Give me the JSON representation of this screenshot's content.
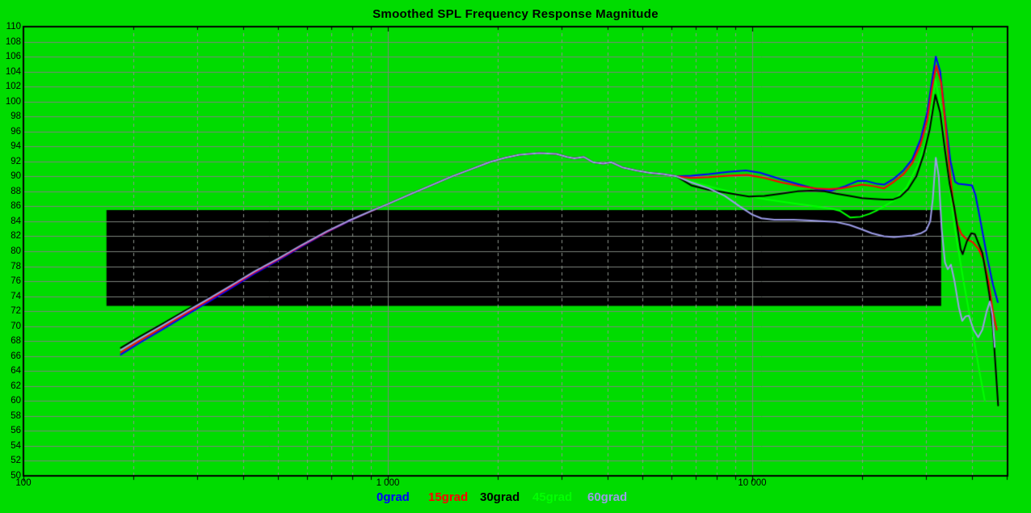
{
  "title": "Smoothed SPL Frequency Response Magnitude",
  "colors": {
    "background": "#00DC00",
    "grid_solid": "#7d857d",
    "grid_dashed": "#8d958d",
    "axis_frame": "#000000",
    "tolerance_band": "#000000"
  },
  "legend": [
    {
      "label": "0grad",
      "color": "#0000FF"
    },
    {
      "label": "15grad",
      "color": "#FF0000"
    },
    {
      "label": "30grad",
      "color": "#000000"
    },
    {
      "label": "45grad",
      "color": "#00FF00"
    },
    {
      "label": "60grad",
      "color": "#9C9CE8"
    }
  ],
  "chart_data": {
    "type": "line",
    "title": "Smoothed SPL Frequency Response Magnitude",
    "xlabel": "",
    "ylabel": "",
    "xscale": "log",
    "xlim": [
      100,
      50200
    ],
    "ylim": [
      50,
      110
    ],
    "grid": true,
    "legend_position": "bottom",
    "y_ticks": [
      "110",
      "108",
      "106",
      "104",
      "102",
      "100",
      "98",
      "96",
      "94",
      "92",
      "90",
      "88",
      "86",
      "84",
      "82",
      "80",
      "78",
      "76",
      "74",
      "72",
      "70",
      "68",
      "66",
      "64",
      "62",
      "60",
      "58",
      "56",
      "54",
      "52",
      "50"
    ],
    "x_ticks": [
      {
        "f": 100,
        "label": "100"
      },
      {
        "f": 1000,
        "label": "1 000"
      },
      {
        "f": 10000,
        "label": "10 000"
      }
    ],
    "tolerance_band": {
      "f1": 169,
      "f2": 33000,
      "db_top": 85.5,
      "db_bottom": 72.7
    },
    "lf_bundle": [
      [
        185,
        67.0
      ],
      [
        210,
        68.6
      ],
      [
        240,
        70.2
      ],
      [
        280,
        72.1
      ],
      [
        320,
        73.7
      ],
      [
        370,
        75.5
      ],
      [
        430,
        77.4
      ],
      [
        500,
        79.1
      ],
      [
        580,
        80.9
      ],
      [
        680,
        82.7
      ],
      [
        780,
        84.1
      ],
      [
        900,
        85.4
      ],
      [
        1000,
        86.3
      ],
      [
        1150,
        87.6
      ],
      [
        1300,
        88.7
      ],
      [
        1500,
        90.0
      ],
      [
        1700,
        91.0
      ],
      [
        1900,
        91.9
      ],
      [
        2100,
        92.5
      ],
      [
        2300,
        92.9
      ],
      [
        2600,
        93.1
      ],
      [
        2900,
        93.0
      ],
      [
        3100,
        92.6
      ],
      [
        3250,
        92.4
      ],
      [
        3450,
        92.6
      ],
      [
        3650,
        91.9
      ],
      [
        3900,
        91.7
      ],
      [
        4100,
        91.9
      ],
      [
        4400,
        91.2
      ],
      [
        4800,
        90.8
      ],
      [
        5200,
        90.5
      ],
      [
        5700,
        90.3
      ],
      [
        6200,
        90.0
      ]
    ],
    "series": [
      {
        "name": "45grad",
        "color": "#00FF00",
        "lf_offset": -0.35,
        "points": [
          [
            6800,
            89.3
          ],
          [
            8000,
            88.4
          ],
          [
            9500,
            87.5
          ],
          [
            11000,
            86.9
          ],
          [
            13000,
            86.4
          ],
          [
            15000,
            86.0
          ],
          [
            16500,
            85.7
          ],
          [
            17400,
            85.4
          ],
          [
            18600,
            84.5
          ],
          [
            19800,
            84.6
          ],
          [
            21000,
            85.0
          ],
          [
            21900,
            85.4
          ],
          [
            23000,
            86.0
          ],
          [
            24500,
            86.8
          ],
          [
            26500,
            88.5
          ],
          [
            28500,
            91.5
          ],
          [
            30500,
            96.0
          ],
          [
            31800,
            103.0
          ],
          [
            33000,
            99.0
          ],
          [
            34500,
            90.0
          ],
          [
            36000,
            83.0
          ],
          [
            38000,
            76.0
          ],
          [
            40000,
            70.0
          ],
          [
            42000,
            64.0
          ],
          [
            43500,
            60.0
          ]
        ]
      },
      {
        "name": "0grad",
        "color": "#0000FF",
        "lf_offset": -0.8,
        "points": [
          [
            6800,
            90.1
          ],
          [
            7600,
            90.3
          ],
          [
            8600,
            90.6
          ],
          [
            9600,
            90.8
          ],
          [
            10500,
            90.5
          ],
          [
            12000,
            89.6
          ],
          [
            13500,
            88.9
          ],
          [
            15000,
            88.3
          ],
          [
            16500,
            88.1
          ],
          [
            18000,
            88.7
          ],
          [
            19500,
            89.4
          ],
          [
            20500,
            89.4
          ],
          [
            22000,
            89.0
          ],
          [
            23000,
            88.9
          ],
          [
            24500,
            89.7
          ],
          [
            26000,
            90.8
          ],
          [
            27500,
            92.3
          ],
          [
            29000,
            95.0
          ],
          [
            30200,
            98.5
          ],
          [
            31200,
            103.0
          ],
          [
            31900,
            106.0
          ],
          [
            32800,
            104.0
          ],
          [
            33800,
            98.0
          ],
          [
            35000,
            92.0
          ],
          [
            36000,
            89.3
          ],
          [
            36800,
            89.0
          ],
          [
            38500,
            88.9
          ],
          [
            40100,
            88.8
          ],
          [
            41000,
            87.5
          ],
          [
            42500,
            83.5
          ],
          [
            44200,
            79.0
          ],
          [
            45800,
            75.5
          ],
          [
            47200,
            73.2
          ]
        ]
      },
      {
        "name": "15grad",
        "color": "#FF0000",
        "lf_offset": -0.5,
        "points": [
          [
            6800,
            89.8
          ],
          [
            7600,
            89.9
          ],
          [
            8600,
            90.1
          ],
          [
            9700,
            90.2
          ],
          [
            10800,
            89.8
          ],
          [
            12000,
            89.2
          ],
          [
            13500,
            88.7
          ],
          [
            15000,
            88.4
          ],
          [
            16200,
            88.3
          ],
          [
            17500,
            88.4
          ],
          [
            19000,
            88.7
          ],
          [
            20000,
            88.9
          ],
          [
            21500,
            88.7
          ],
          [
            23000,
            88.4
          ],
          [
            24500,
            89.3
          ],
          [
            26000,
            90.3
          ],
          [
            27500,
            91.8
          ],
          [
            29000,
            94.3
          ],
          [
            30200,
            97.5
          ],
          [
            31200,
            102.0
          ],
          [
            32000,
            104.8
          ],
          [
            33000,
            102.5
          ],
          [
            33900,
            97.0
          ],
          [
            34800,
            91.0
          ],
          [
            35600,
            86.5
          ],
          [
            36600,
            83.5
          ],
          [
            37500,
            82.3
          ],
          [
            38800,
            81.6
          ],
          [
            40300,
            81.2
          ],
          [
            41800,
            80.3
          ],
          [
            43200,
            78.8
          ],
          [
            44500,
            76.0
          ],
          [
            45800,
            71.8
          ],
          [
            46900,
            69.5
          ]
        ]
      },
      {
        "name": "30grad",
        "color": "#000000",
        "lf_offset": 0.1,
        "points": [
          [
            6800,
            88.8
          ],
          [
            7600,
            88.2
          ],
          [
            8300,
            87.9
          ],
          [
            9000,
            87.6
          ],
          [
            9800,
            87.3
          ],
          [
            10800,
            87.4
          ],
          [
            12000,
            87.7
          ],
          [
            13300,
            88.0
          ],
          [
            14500,
            88.1
          ],
          [
            15800,
            88.0
          ],
          [
            17000,
            87.7
          ],
          [
            18500,
            87.4
          ],
          [
            20000,
            87.1
          ],
          [
            21500,
            87.0
          ],
          [
            23000,
            86.9
          ],
          [
            24300,
            86.9
          ],
          [
            25500,
            87.3
          ],
          [
            26800,
            88.3
          ],
          [
            28200,
            90.0
          ],
          [
            29500,
            92.8
          ],
          [
            30700,
            96.3
          ],
          [
            31800,
            100.9
          ],
          [
            32800,
            98.5
          ],
          [
            33800,
            93.5
          ],
          [
            34800,
            89.0
          ],
          [
            35800,
            86.0
          ],
          [
            36600,
            83.0
          ],
          [
            37300,
            80.3
          ],
          [
            37800,
            79.6
          ],
          [
            38800,
            81.3
          ],
          [
            39900,
            82.4
          ],
          [
            40800,
            82.3
          ],
          [
            41800,
            81.0
          ],
          [
            42800,
            79.8
          ],
          [
            43800,
            77.0
          ],
          [
            44800,
            74.0
          ],
          [
            45800,
            69.5
          ],
          [
            46700,
            63.5
          ],
          [
            47300,
            59.4
          ]
        ]
      },
      {
        "name": "60grad",
        "color": "#9C9CE8",
        "lf_offset": -0.2,
        "points": [
          [
            6800,
            89.2
          ],
          [
            7600,
            88.4
          ],
          [
            8400,
            87.4
          ],
          [
            9300,
            85.9
          ],
          [
            10000,
            84.9
          ],
          [
            10600,
            84.4
          ],
          [
            11500,
            84.2
          ],
          [
            13000,
            84.2
          ],
          [
            14500,
            84.1
          ],
          [
            15800,
            84.0
          ],
          [
            17000,
            83.9
          ],
          [
            18500,
            83.5
          ],
          [
            19800,
            83.0
          ],
          [
            21300,
            82.4
          ],
          [
            23000,
            82.0
          ],
          [
            24500,
            81.9
          ],
          [
            26000,
            82.0
          ],
          [
            27500,
            82.1
          ],
          [
            29000,
            82.4
          ],
          [
            30000,
            82.8
          ],
          [
            30800,
            84.0
          ],
          [
            31300,
            87.0
          ],
          [
            31900,
            92.5
          ],
          [
            32500,
            90.0
          ],
          [
            33100,
            83.0
          ],
          [
            33800,
            78.5
          ],
          [
            34400,
            77.6
          ],
          [
            35100,
            78.2
          ],
          [
            35900,
            76.0
          ],
          [
            36900,
            72.5
          ],
          [
            37700,
            70.7
          ],
          [
            38500,
            71.3
          ],
          [
            39300,
            71.4
          ],
          [
            40500,
            69.5
          ],
          [
            41700,
            68.5
          ],
          [
            42800,
            69.5
          ],
          [
            44000,
            72.0
          ],
          [
            44900,
            73.3
          ],
          [
            45600,
            71.5
          ],
          [
            46300,
            67.2
          ]
        ]
      }
    ]
  }
}
